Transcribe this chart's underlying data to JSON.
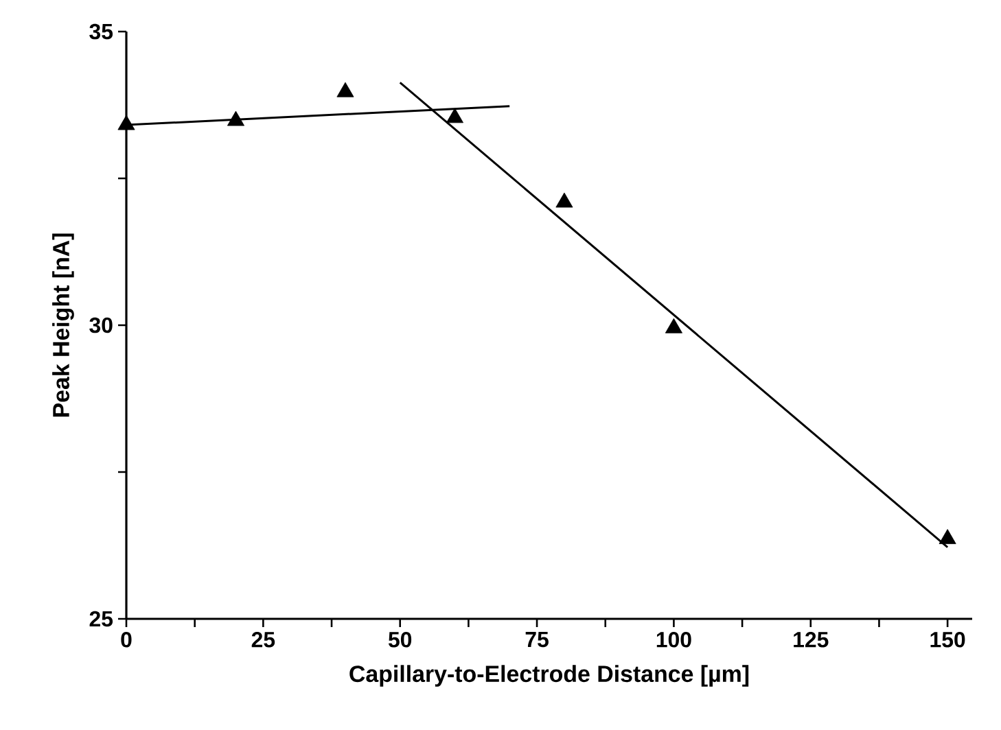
{
  "chart_data": {
    "type": "scatter",
    "xlabel": "Capillary-to-Electrode Distance [µm]",
    "ylabel": "Peak Height [nA]",
    "xlim": [
      0,
      154.5
    ],
    "ylim": [
      25,
      35
    ],
    "xticks": [
      0,
      {
        "value": 12.5,
        "label": null
      },
      25,
      {
        "value": 37.5,
        "label": null
      },
      50,
      {
        "value": 62.5,
        "label": null
      },
      75,
      {
        "value": 87.5,
        "label": null
      },
      100,
      {
        "value": 112.5,
        "label": null
      },
      125,
      {
        "value": 137.5,
        "label": null
      },
      150
    ],
    "yticks": [
      25,
      {
        "value": 27.5,
        "label": null
      },
      30,
      {
        "value": 32.5,
        "label": null
      },
      35
    ],
    "marker": "triangle",
    "series": [
      {
        "color": "#000000",
        "x": [
          0,
          20,
          40,
          60,
          80,
          100,
          150
        ],
        "values": [
          33.41,
          33.48,
          33.97,
          33.53,
          32.09,
          29.95,
          26.36
        ]
      },
      {
        "type": "line",
        "color": "#000000",
        "marker": "none",
        "x": [
          0,
          70
        ],
        "values": [
          33.41,
          33.73
        ]
      },
      {
        "type": "line",
        "color": "#000000",
        "marker": "none",
        "x": [
          50,
          150
        ],
        "values": [
          34.13,
          26.22
        ]
      }
    ]
  }
}
